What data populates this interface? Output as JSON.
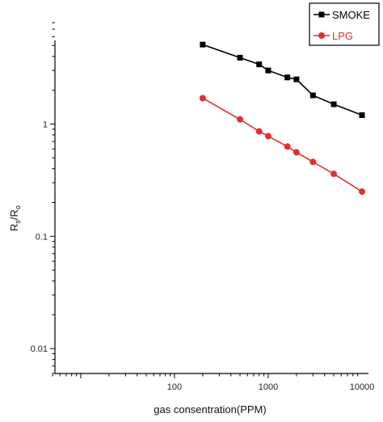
{
  "chart_data": {
    "type": "line",
    "xscale": "log",
    "yscale": "log",
    "xlim": [
      5,
      10000
    ],
    "ylim": [
      0.006,
      8
    ],
    "xlabel": "gas consentration(PPM)",
    "ylabel": {
      "main": "R",
      "sub1": "s",
      "slash": "/R",
      "sub2": "o"
    },
    "x_ticks": [
      {
        "value": 100,
        "label": "100"
      },
      {
        "value": 1000,
        "label": "1000"
      },
      {
        "value": 10000,
        "label": "10000"
      }
    ],
    "y_ticks": [
      {
        "value": 0.01,
        "label": "0.01"
      },
      {
        "value": 0.1,
        "label": "0.1"
      },
      {
        "value": 1,
        "label": "1"
      }
    ],
    "grid": false,
    "legend_position": "top-right",
    "series": [
      {
        "name": "SMOKE",
        "color": "#000000",
        "marker": "square",
        "x": [
          200,
          500,
          800,
          1000,
          1600,
          2000,
          3000,
          5000,
          10000
        ],
        "y": [
          5.1,
          3.9,
          3.4,
          3.0,
          2.6,
          2.5,
          1.8,
          1.5,
          1.2
        ]
      },
      {
        "name": "LPG",
        "color": "#e03030",
        "marker": "circle",
        "x": [
          200,
          500,
          800,
          1000,
          1600,
          2000,
          3000,
          5000,
          10000
        ],
        "y": [
          1.7,
          1.1,
          0.86,
          0.78,
          0.63,
          0.56,
          0.46,
          0.36,
          0.25
        ]
      }
    ]
  }
}
